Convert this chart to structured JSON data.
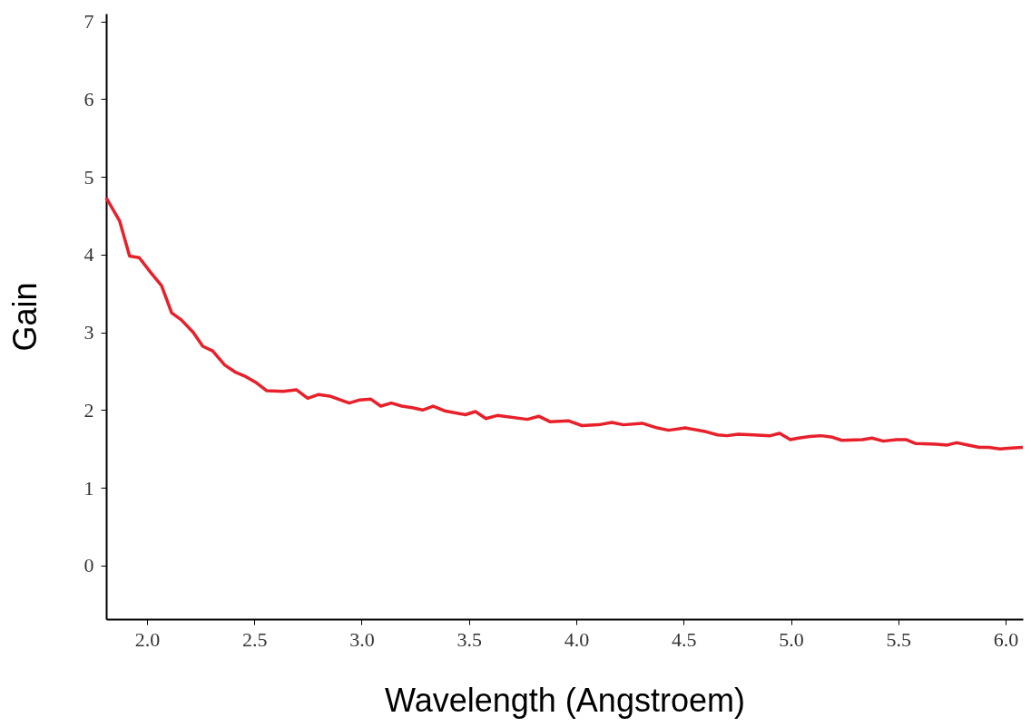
{
  "chart_data": {
    "type": "line",
    "xlabel": "Wavelength (Angstroem)",
    "ylabel": "Gain",
    "xlim": [
      1.81,
      6.08
    ],
    "ylim": [
      -0.69,
      7.1
    ],
    "xticks": [
      {
        "value": 2,
        "label": "2.0"
      },
      {
        "value": 2.5,
        "label": "2.5"
      },
      {
        "value": 3,
        "label": "3.0"
      },
      {
        "value": 3.5,
        "label": "3.5"
      },
      {
        "value": 4,
        "label": "4.0"
      },
      {
        "value": 4.5,
        "label": "4.5"
      },
      {
        "value": 5,
        "label": "5.0"
      },
      {
        "value": 5.5,
        "label": "5.5"
      },
      {
        "value": 6,
        "label": "6.0"
      }
    ],
    "yticks": [
      0,
      1,
      2,
      3,
      4,
      5,
      6,
      7
    ],
    "series": [
      {
        "color": "#e8202a",
        "x": [
          1.81,
          1.873,
          1.919,
          1.964,
          2.02,
          2.068,
          2.115,
          2.16,
          2.215,
          2.26,
          2.306,
          2.362,
          2.41,
          2.46,
          2.51,
          2.557,
          2.634,
          2.697,
          2.749,
          2.8,
          2.851,
          2.942,
          2.991,
          3.043,
          3.089,
          3.138,
          3.187,
          3.236,
          3.284,
          3.333,
          3.386,
          3.483,
          3.53,
          3.579,
          3.632,
          3.772,
          3.825,
          3.877,
          3.965,
          4.026,
          4.104,
          4.166,
          4.219,
          4.307,
          4.377,
          4.43,
          4.508,
          4.605,
          4.658,
          4.702,
          4.754,
          4.824,
          4.904,
          4.947,
          4.997,
          5.035,
          5.088,
          5.14,
          5.193,
          5.237,
          5.333,
          5.377,
          5.43,
          5.491,
          5.535,
          5.579,
          5.675,
          5.728,
          5.772,
          5.825,
          5.877,
          5.921,
          5.974,
          6.026,
          6.08
        ],
        "values": [
          4.73,
          4.43,
          3.98,
          3.96,
          3.76,
          3.6,
          3.25,
          3.16,
          3.0,
          2.82,
          2.76,
          2.58,
          2.49,
          2.43,
          2.35,
          2.25,
          2.24,
          2.26,
          2.15,
          2.2,
          2.18,
          2.09,
          2.13,
          2.14,
          2.05,
          2.09,
          2.05,
          2.03,
          2.0,
          2.05,
          1.99,
          1.94,
          1.98,
          1.89,
          1.93,
          1.88,
          1.92,
          1.85,
          1.86,
          1.8,
          1.81,
          1.84,
          1.81,
          1.83,
          1.77,
          1.74,
          1.77,
          1.72,
          1.68,
          1.67,
          1.69,
          1.68,
          1.67,
          1.7,
          1.62,
          1.64,
          1.66,
          1.67,
          1.65,
          1.61,
          1.62,
          1.64,
          1.6,
          1.62,
          1.62,
          1.57,
          1.56,
          1.55,
          1.58,
          1.55,
          1.52,
          1.52,
          1.5,
          1.51,
          1.52
        ]
      }
    ],
    "line_style": "solid"
  }
}
